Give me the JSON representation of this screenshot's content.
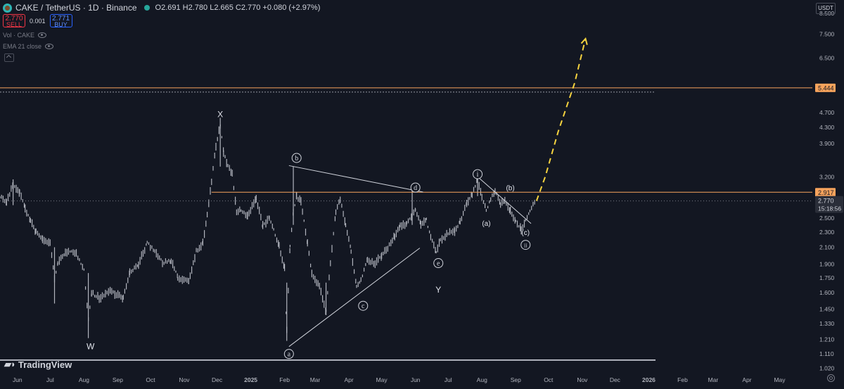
{
  "header": {
    "symbol": "CAKE / TetherUS · 1D · Binance",
    "ohlc": "O2.691 H2.780 L2.665 C2.770 +0.080 (+2.97%)"
  },
  "trade": {
    "sell_price": "2.770",
    "sell_label": "SELL",
    "spread": "0.001",
    "buy_price": "2.771",
    "buy_label": "BUY"
  },
  "indicators": {
    "vol": "Vol · CAKE",
    "ema": "EMA 21 close"
  },
  "currency": "USDT",
  "logo_text": "TradingView",
  "colors": {
    "background": "#131722",
    "candles": "#b2b5be",
    "horizontal_level": "#f7a35c",
    "projection": "#f5d33f",
    "tag_bg": "#f7a35c"
  },
  "chart_data": {
    "type": "line",
    "title": "",
    "xlabel": "",
    "ylabel": "",
    "scale": "log",
    "ylim": [
      1.0,
      9.2
    ],
    "xlim": [
      "2024-05-16",
      "2026-05-31"
    ],
    "y_ticks": [
      "8.500",
      "7.500",
      "6.500",
      "5.444",
      "4.700",
      "4.300",
      "3.900",
      "3.200",
      "2.917",
      "2.770",
      "2.500",
      "2.300",
      "2.100",
      "1.900",
      "1.750",
      "1.600",
      "1.450",
      "1.330",
      "1.210",
      "1.110",
      "1.020"
    ],
    "y_tick_values": [
      8.5,
      7.5,
      6.5,
      5.444,
      4.7,
      4.3,
      3.9,
      3.2,
      2.917,
      2.77,
      2.5,
      2.3,
      2.1,
      1.9,
      1.75,
      1.6,
      1.45,
      1.33,
      1.21,
      1.11,
      1.02
    ],
    "x_ticks": [
      {
        "label": "Jun",
        "date": "2024-06-01"
      },
      {
        "label": "Jul",
        "date": "2024-07-01"
      },
      {
        "label": "Aug",
        "date": "2024-08-01"
      },
      {
        "label": "Sep",
        "date": "2024-09-01"
      },
      {
        "label": "Oct",
        "date": "2024-10-01"
      },
      {
        "label": "Nov",
        "date": "2024-11-01"
      },
      {
        "label": "Dec",
        "date": "2024-12-01"
      },
      {
        "label": "2025",
        "date": "2025-01-01"
      },
      {
        "label": "Feb",
        "date": "2025-02-01"
      },
      {
        "label": "Mar",
        "date": "2025-03-01"
      },
      {
        "label": "Apr",
        "date": "2025-04-01"
      },
      {
        "label": "May",
        "date": "2025-05-01"
      },
      {
        "label": "Jun",
        "date": "2025-06-01"
      },
      {
        "label": "Jul",
        "date": "2025-07-01"
      },
      {
        "label": "Aug",
        "date": "2025-08-01"
      },
      {
        "label": "Sep",
        "date": "2025-09-01"
      },
      {
        "label": "Oct",
        "date": "2025-10-01"
      },
      {
        "label": "Nov",
        "date": "2025-11-01"
      },
      {
        "label": "Dec",
        "date": "2025-12-01"
      },
      {
        "label": "2026",
        "date": "2026-01-01"
      },
      {
        "label": "Feb",
        "date": "2026-02-01"
      },
      {
        "label": "Mar",
        "date": "2026-03-01"
      },
      {
        "label": "Apr",
        "date": "2026-04-01"
      },
      {
        "label": "May",
        "date": "2026-05-01"
      }
    ],
    "series": [
      {
        "values": [
          [
            "2024-05-16",
            2.85
          ],
          [
            "2024-05-22",
            2.75
          ],
          [
            "2024-05-28",
            3.05
          ],
          [
            "2024-06-03",
            2.92
          ],
          [
            "2024-06-08",
            2.65
          ],
          [
            "2024-06-13",
            2.45
          ],
          [
            "2024-06-18",
            2.3
          ],
          [
            "2024-06-24",
            2.2
          ],
          [
            "2024-07-01",
            2.15
          ],
          [
            "2024-07-05",
            1.75
          ],
          [
            "2024-07-08",
            1.9
          ],
          [
            "2024-07-15",
            2.05
          ],
          [
            "2024-07-25",
            2.02
          ],
          [
            "2024-08-01",
            1.85
          ],
          [
            "2024-08-05",
            1.36
          ],
          [
            "2024-08-08",
            1.6
          ],
          [
            "2024-08-15",
            1.55
          ],
          [
            "2024-08-25",
            1.62
          ],
          [
            "2024-09-06",
            1.55
          ],
          [
            "2024-09-12",
            1.8
          ],
          [
            "2024-09-20",
            1.9
          ],
          [
            "2024-09-28",
            2.15
          ],
          [
            "2024-10-05",
            2.05
          ],
          [
            "2024-10-12",
            1.92
          ],
          [
            "2024-10-20",
            1.93
          ],
          [
            "2024-10-26",
            1.75
          ],
          [
            "2024-11-05",
            1.72
          ],
          [
            "2024-11-12",
            2.05
          ],
          [
            "2024-11-18",
            2.15
          ],
          [
            "2024-11-22",
            2.55
          ],
          [
            "2024-11-26",
            3.1
          ],
          [
            "2024-11-30",
            3.85
          ],
          [
            "2024-12-04",
            4.35
          ],
          [
            "2024-12-07",
            3.7
          ],
          [
            "2024-12-11",
            3.4
          ],
          [
            "2024-12-15",
            3.25
          ],
          [
            "2024-12-19",
            2.6
          ],
          [
            "2024-12-23",
            2.62
          ],
          [
            "2024-12-29",
            2.52
          ],
          [
            "2025-01-06",
            2.82
          ],
          [
            "2025-01-12",
            2.38
          ],
          [
            "2025-01-18",
            2.5
          ],
          [
            "2025-01-22",
            2.32
          ],
          [
            "2025-01-27",
            2.12
          ],
          [
            "2025-02-01",
            1.85
          ],
          [
            "2025-02-03",
            1.28
          ],
          [
            "2025-02-06",
            2.1
          ],
          [
            "2025-02-09",
            2.6
          ],
          [
            "2025-02-12",
            2.85
          ],
          [
            "2025-02-16",
            2.75
          ],
          [
            "2025-02-22",
            2.15
          ],
          [
            "2025-02-26",
            1.8
          ],
          [
            "2025-03-05",
            1.66
          ],
          [
            "2025-03-11",
            1.43
          ],
          [
            "2025-03-15",
            1.92
          ],
          [
            "2025-03-20",
            2.6
          ],
          [
            "2025-03-24",
            2.8
          ],
          [
            "2025-03-29",
            2.4
          ],
          [
            "2025-04-03",
            2.05
          ],
          [
            "2025-04-08",
            1.65
          ],
          [
            "2025-04-12",
            1.73
          ],
          [
            "2025-04-18",
            1.95
          ],
          [
            "2025-04-25",
            1.9
          ],
          [
            "2025-05-01",
            2.0
          ],
          [
            "2025-05-08",
            2.12
          ],
          [
            "2025-05-13",
            2.25
          ],
          [
            "2025-05-18",
            2.38
          ],
          [
            "2025-05-24",
            2.42
          ],
          [
            "2025-05-29",
            2.55
          ],
          [
            "2025-06-01",
            2.62
          ],
          [
            "2025-06-06",
            2.42
          ],
          [
            "2025-06-11",
            2.48
          ],
          [
            "2025-06-15",
            2.22
          ],
          [
            "2025-06-20",
            2.05
          ],
          [
            "2025-06-24",
            2.18
          ],
          [
            "2025-07-01",
            2.28
          ],
          [
            "2025-07-07",
            2.32
          ],
          [
            "2025-07-12",
            2.45
          ],
          [
            "2025-07-18",
            2.72
          ],
          [
            "2025-07-23",
            2.88
          ],
          [
            "2025-07-28",
            3.15
          ],
          [
            "2025-08-01",
            2.85
          ],
          [
            "2025-08-05",
            2.6
          ],
          [
            "2025-08-09",
            2.8
          ],
          [
            "2025-08-13",
            2.95
          ],
          [
            "2025-08-18",
            2.72
          ],
          [
            "2025-08-22",
            2.8
          ],
          [
            "2025-08-27",
            2.6
          ],
          [
            "2025-09-01",
            2.45
          ],
          [
            "2025-09-06",
            2.33
          ],
          [
            "2025-09-10",
            2.48
          ],
          [
            "2025-09-14",
            2.6
          ],
          [
            "2025-09-19",
            2.77
          ]
        ]
      },
      {
        "values": [
          [
            "2025-09-20",
            2.77
          ],
          [
            "2025-09-28",
            3.2
          ],
          [
            "2025-10-10",
            4.2
          ],
          [
            "2025-10-25",
            5.6
          ],
          [
            "2025-11-04",
            7.3
          ]
        ]
      }
    ],
    "horizontal_levels": [
      {
        "label": "5.444",
        "y": 5.444
      },
      {
        "label": "2.917",
        "y": 2.917
      },
      {
        "label": "2.770",
        "y": 2.77,
        "sub": "15:18:56"
      }
    ],
    "baseline_level": 1.07,
    "trendlines": [
      {
        "points": [
          [
            "2025-02-05",
            3.42
          ],
          [
            "2025-06-08",
            2.92
          ]
        ]
      },
      {
        "points": [
          [
            "2025-02-05",
            1.16
          ],
          [
            "2025-06-05",
            2.09
          ]
        ]
      },
      {
        "points": [
          [
            "2025-07-28",
            3.2
          ],
          [
            "2025-09-15",
            2.42
          ]
        ]
      }
    ],
    "annotations": [
      {
        "text": "X",
        "x": "2024-12-04",
        "y": 4.65,
        "style": "plain"
      },
      {
        "text": "W",
        "x": "2024-08-07",
        "y": 1.16,
        "style": "plain"
      },
      {
        "text": "Y",
        "x": "2025-06-22",
        "y": 1.63,
        "style": "plain"
      },
      {
        "text": "b",
        "x": "2025-02-12",
        "y": 3.58,
        "style": "circle"
      },
      {
        "text": "d",
        "x": "2025-06-01",
        "y": 3.0,
        "style": "circle"
      },
      {
        "text": "a",
        "x": "2025-02-05",
        "y": 1.11,
        "style": "circle"
      },
      {
        "text": "c",
        "x": "2025-04-14",
        "y": 1.48,
        "style": "circle"
      },
      {
        "text": "e",
        "x": "2025-06-22",
        "y": 1.91,
        "style": "circle"
      },
      {
        "text": "i",
        "x": "2025-07-28",
        "y": 3.25,
        "style": "circle"
      },
      {
        "text": "ii",
        "x": "2025-09-10",
        "y": 2.13,
        "style": "circle"
      },
      {
        "text": "(a)",
        "x": "2025-08-05",
        "y": 2.43,
        "style": "plain"
      },
      {
        "text": "(b)",
        "x": "2025-08-27",
        "y": 3.0,
        "style": "plain"
      },
      {
        "text": "(c)",
        "x": "2025-09-10",
        "y": 2.3,
        "style": "plain"
      }
    ]
  }
}
